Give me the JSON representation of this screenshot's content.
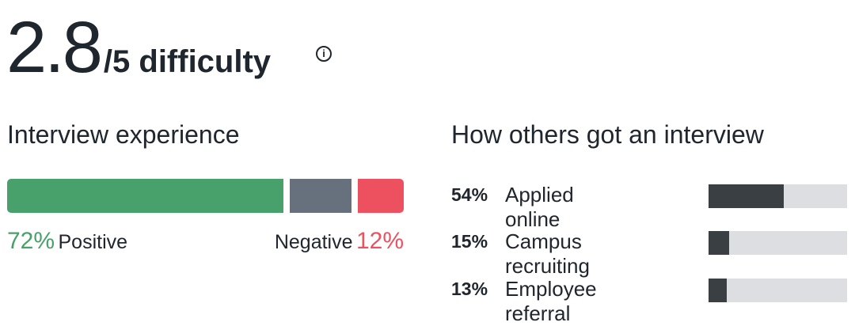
{
  "rating": {
    "value": "2.8",
    "suffix": "/5 difficulty",
    "info_icon": "info-icon"
  },
  "experience": {
    "title": "Interview experience",
    "positive_pct": 72,
    "neutral_pct": 16,
    "negative_pct": 12,
    "positive_value": "72%",
    "positive_label": "Positive",
    "negative_label": "Negative",
    "negative_value": "12%",
    "colors": {
      "positive": "#48a06a",
      "neutral": "#67717d",
      "negative": "#ed5160"
    }
  },
  "sources": {
    "title": "How others got an interview",
    "items": [
      {
        "value": "54%",
        "label": "Applied online",
        "pct": 54
      },
      {
        "value": "15%",
        "label": "Campus recruiting",
        "pct": 15
      },
      {
        "value": "13%",
        "label": "Employee referral",
        "pct": 13
      }
    ]
  }
}
